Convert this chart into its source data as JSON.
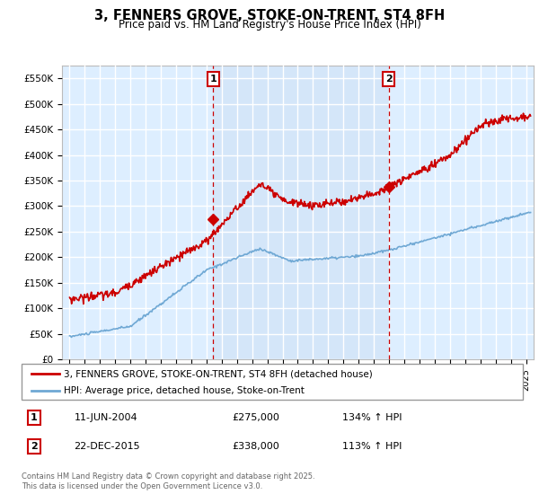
{
  "title": "3, FENNERS GROVE, STOKE-ON-TRENT, ST4 8FH",
  "subtitle": "Price paid vs. HM Land Registry's House Price Index (HPI)",
  "ylabel_ticks": [
    "£0",
    "£50K",
    "£100K",
    "£150K",
    "£200K",
    "£250K",
    "£300K",
    "£350K",
    "£400K",
    "£450K",
    "£500K",
    "£550K"
  ],
  "ylabel_values": [
    0,
    50000,
    100000,
    150000,
    200000,
    250000,
    300000,
    350000,
    400000,
    450000,
    500000,
    550000
  ],
  "ylim": [
    0,
    575000
  ],
  "xlim_start": 1994.5,
  "xlim_end": 2025.5,
  "purchase1_date": 2004.44,
  "purchase1_price": 275000,
  "purchase1_label": "1",
  "purchase2_date": 2015.97,
  "purchase2_price": 338000,
  "purchase2_label": "2",
  "legend_line1": "3, FENNERS GROVE, STOKE-ON-TRENT, ST4 8FH (detached house)",
  "legend_line2": "HPI: Average price, detached house, Stoke-on-Trent",
  "annotation1_date": "11-JUN-2004",
  "annotation1_price": "£275,000",
  "annotation1_hpi": "134% ↑ HPI",
  "annotation2_date": "22-DEC-2015",
  "annotation2_price": "£338,000",
  "annotation2_hpi": "113% ↑ HPI",
  "footer": "Contains HM Land Registry data © Crown copyright and database right 2025.\nThis data is licensed under the Open Government Licence v3.0.",
  "hpi_color": "#6fa8d4",
  "price_color": "#cc0000",
  "vline_color": "#cc0000",
  "bg_color": "#ddeeff",
  "shaded_bg": "#ddeeff",
  "grid_color": "#ffffff"
}
